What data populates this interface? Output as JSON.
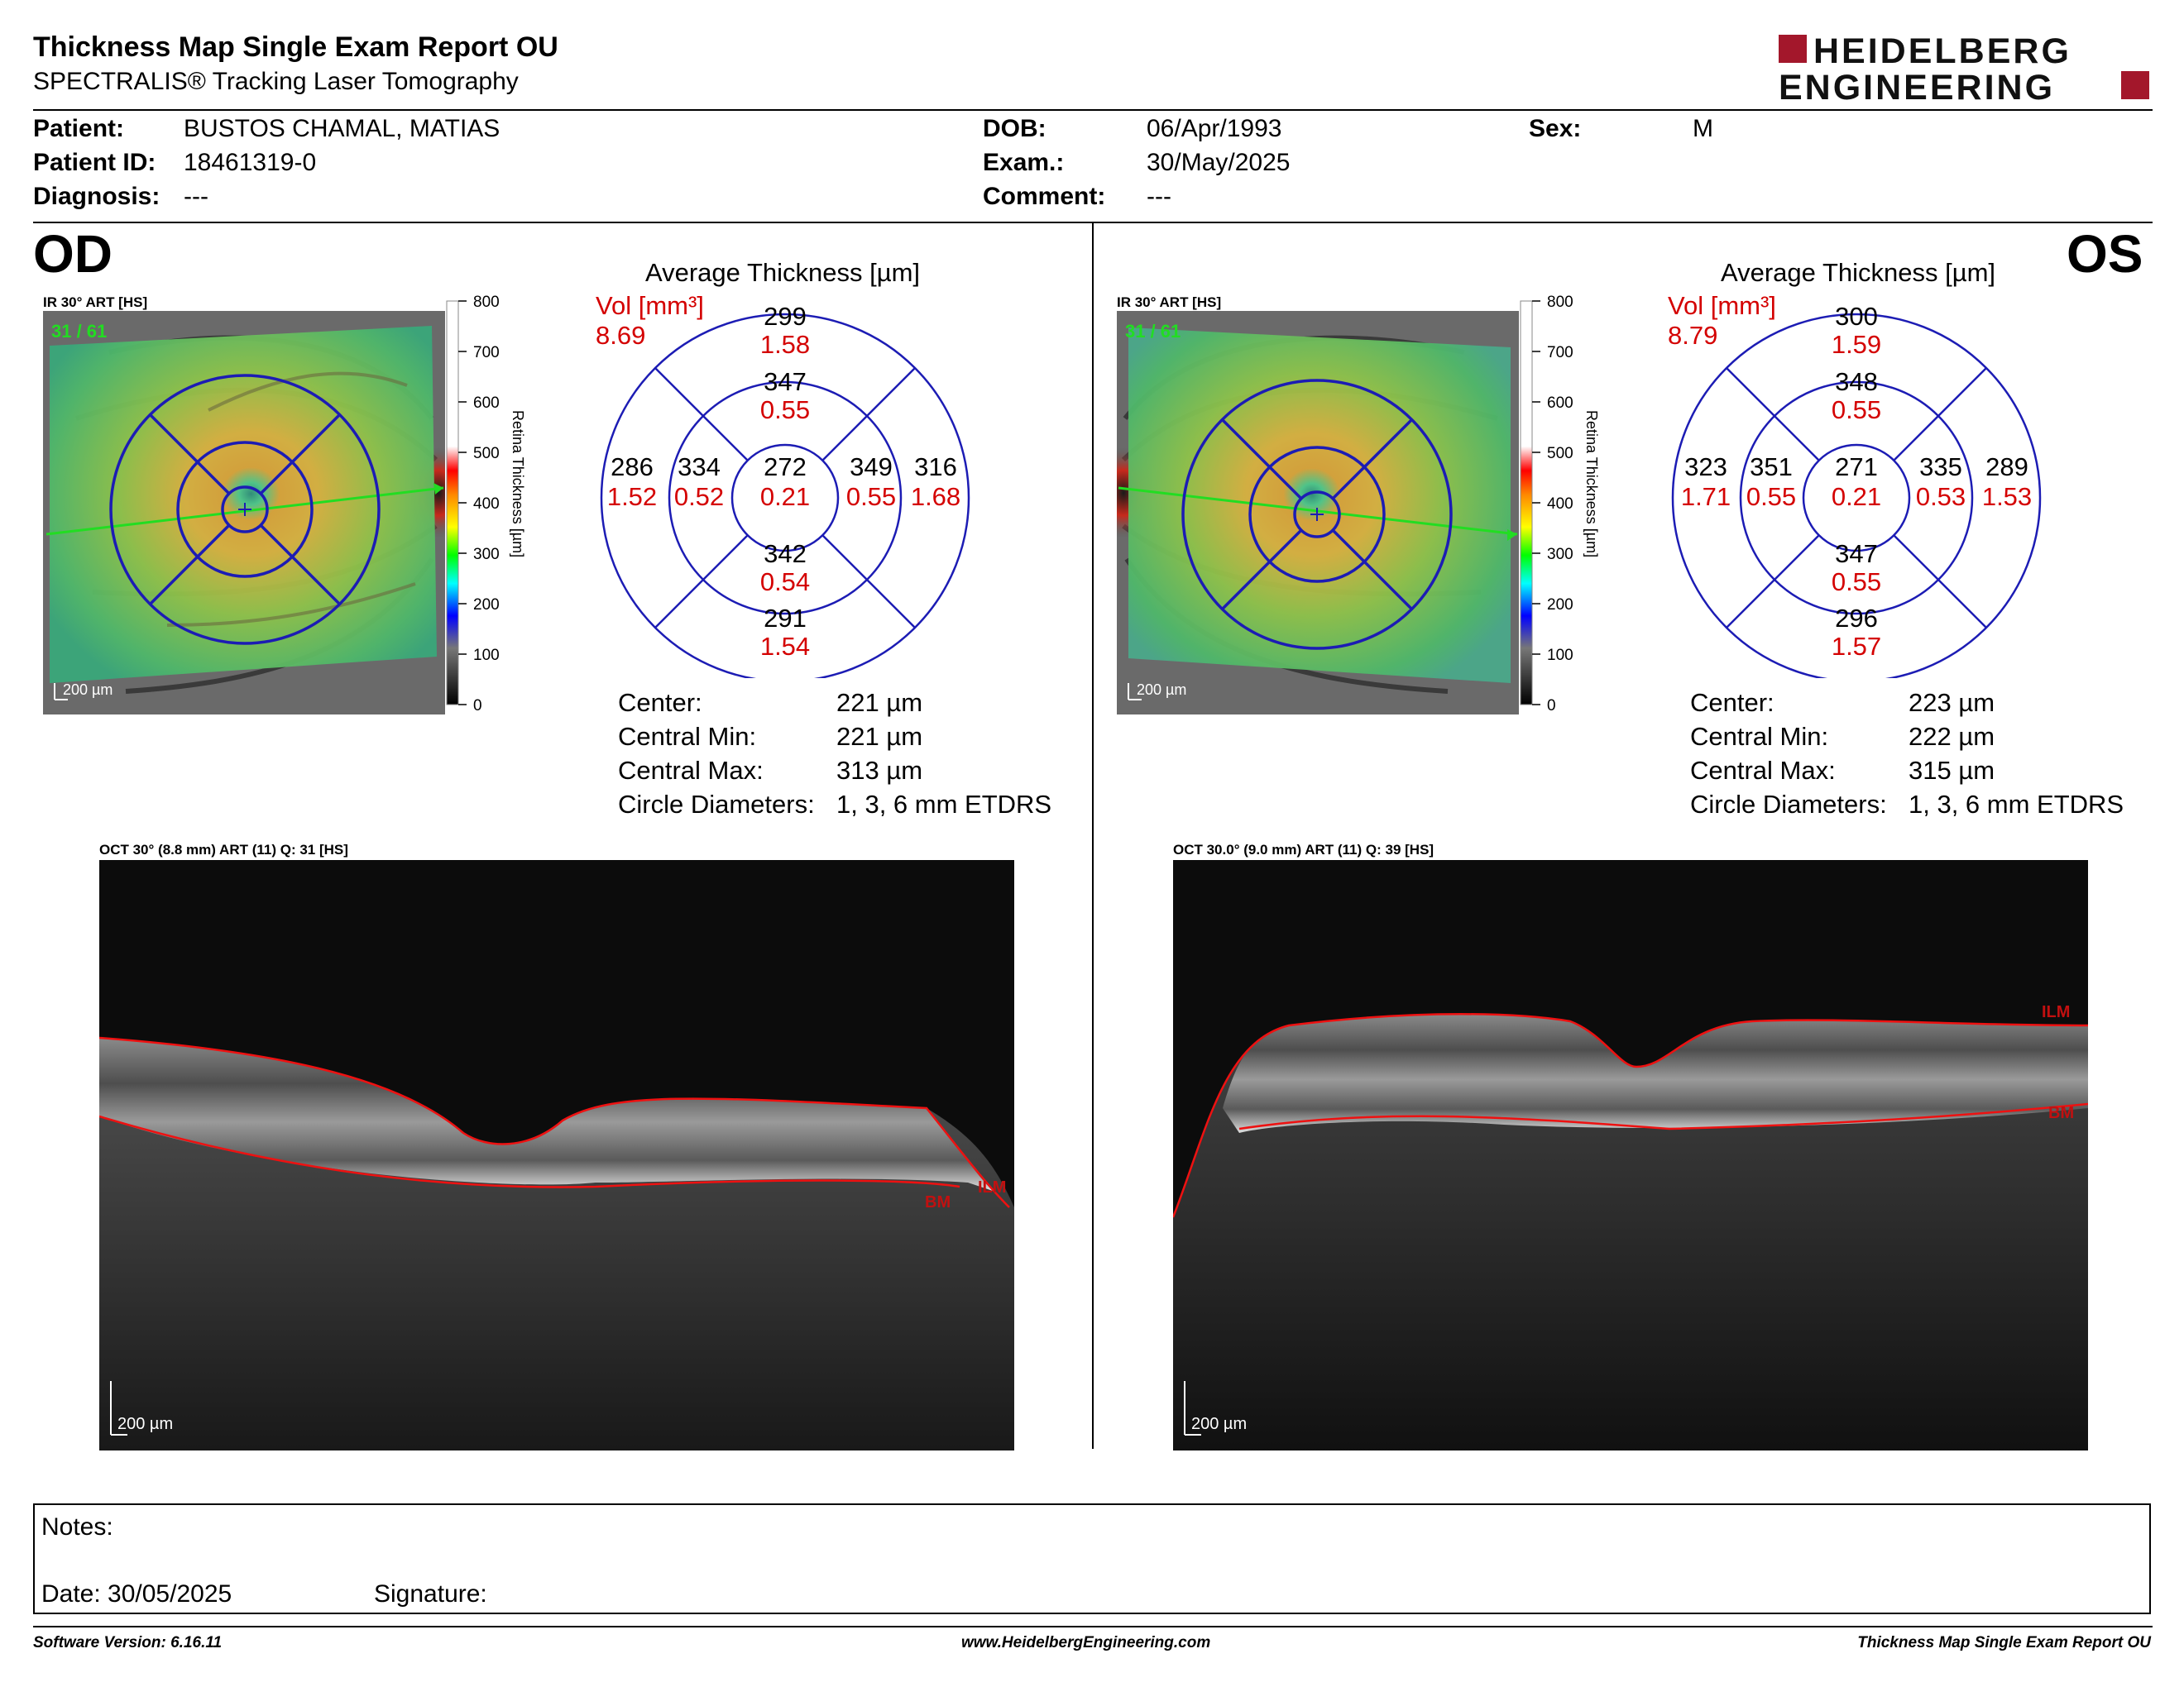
{
  "header": {
    "title": "Thickness Map Single Exam Report OU",
    "subtitle": "SPECTRALIS® Tracking Laser Tomography",
    "logo_line1": "HEIDELBERG",
    "logo_line2": "ENGINEERING"
  },
  "patient": {
    "patient_label": "Patient:",
    "patient_value": "BUSTOS CHAMAL, MATIAS",
    "id_label": "Patient ID:",
    "id_value": "18461319-0",
    "diagnosis_label": "Diagnosis:",
    "diagnosis_value": "---",
    "dob_label": "DOB:",
    "dob_value": "06/Apr/1993",
    "exam_label": "Exam.:",
    "exam_value": "30/May/2025",
    "comment_label": "Comment:",
    "comment_value": "---",
    "sex_label": "Sex:",
    "sex_value": "M"
  },
  "od": {
    "eye": "OD",
    "ir_label": "IR 30° ART [HS]",
    "frames": "31 / 61",
    "scale_bar": "200 µm",
    "colorbar_title": "Retina Thickness [µm]",
    "colorbar_ticks": [
      "800",
      "700",
      "600",
      "500",
      "400",
      "300",
      "200",
      "100",
      "0"
    ],
    "grid_title": "Average Thickness [µm]",
    "vol_label": "Vol [mm³]",
    "vol_value": "8.69",
    "sectors": {
      "outer_sup": {
        "t": "299",
        "v": "1.58"
      },
      "inner_sup": {
        "t": "347",
        "v": "0.55"
      },
      "outer_nasal_left": {
        "t": "286",
        "v": "1.52"
      },
      "inner_left": {
        "t": "334",
        "v": "0.52"
      },
      "center": {
        "t": "272",
        "v": "0.21"
      },
      "inner_right": {
        "t": "349",
        "v": "0.55"
      },
      "outer_right": {
        "t": "316",
        "v": "1.68"
      },
      "inner_inf": {
        "t": "342",
        "v": "0.54"
      },
      "outer_inf": {
        "t": "291",
        "v": "1.54"
      }
    },
    "stats": [
      {
        "label": "Center:",
        "value": "221 µm"
      },
      {
        "label": "Central Min:",
        "value": "221 µm"
      },
      {
        "label": "Central Max:",
        "value": "313 µm"
      },
      {
        "label": "Circle Diameters:",
        "value": "1, 3, 6 mm ETDRS"
      }
    ],
    "oct_label": "OCT 30° (8.8 mm) ART (11) Q: 31 [HS]",
    "oct_scale": "200 µm",
    "ilm": "ILM",
    "bm": "BM"
  },
  "os": {
    "eye": "OS",
    "ir_label": "IR 30° ART [HS]",
    "frames": "31 / 61",
    "scale_bar": "200 µm",
    "colorbar_title": "Retina Thickness [µm]",
    "colorbar_ticks": [
      "800",
      "700",
      "600",
      "500",
      "400",
      "300",
      "200",
      "100",
      "0"
    ],
    "grid_title": "Average Thickness [µm]",
    "vol_label": "Vol [mm³]",
    "vol_value": "8.79",
    "sectors": {
      "outer_sup": {
        "t": "300",
        "v": "1.59"
      },
      "inner_sup": {
        "t": "348",
        "v": "0.55"
      },
      "outer_nasal_left": {
        "t": "323",
        "v": "1.71"
      },
      "inner_left": {
        "t": "351",
        "v": "0.55"
      },
      "center": {
        "t": "271",
        "v": "0.21"
      },
      "inner_right": {
        "t": "335",
        "v": "0.53"
      },
      "outer_right": {
        "t": "289",
        "v": "1.53"
      },
      "inner_inf": {
        "t": "347",
        "v": "0.55"
      },
      "outer_inf": {
        "t": "296",
        "v": "1.57"
      }
    },
    "stats": [
      {
        "label": "Center:",
        "value": "223 µm"
      },
      {
        "label": "Central Min:",
        "value": "222 µm"
      },
      {
        "label": "Central Max:",
        "value": "315 µm"
      },
      {
        "label": "Circle Diameters:",
        "value": "1, 3, 6 mm ETDRS"
      }
    ],
    "oct_label": "OCT 30.0° (9.0 mm) ART (11) Q: 39 [HS]",
    "oct_scale": "200 µm",
    "ilm": "ILM",
    "bm": "BM"
  },
  "notes": {
    "notes_label": "Notes:",
    "date_label": "Date: 30/05/2025",
    "signature_label": "Signature:"
  },
  "footer": {
    "software": "Software Version: 6.16.11",
    "website": "www.HeidelbergEngineering.com",
    "report": "Thickness Map Single Exam Report OU"
  },
  "colors": {
    "grid_blue": "#1c1cb4",
    "volume_red": "#d40000",
    "logo_red": "#a3172b",
    "frame_green": "#22dd22"
  }
}
